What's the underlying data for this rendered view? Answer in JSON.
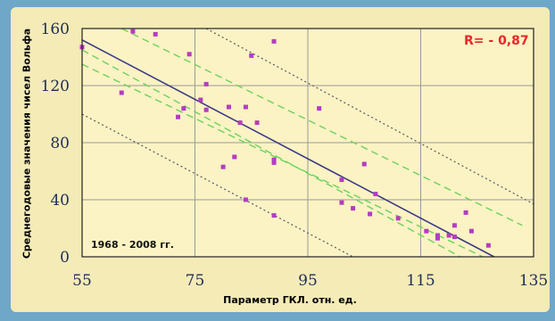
{
  "chart_data": {
    "type": "scatter",
    "ylabel": "Среднегодовые значения чисел Вольфа",
    "xlabel": "Параметр  ГКЛ.  отн. ед.",
    "annotation": "R= - 0,87",
    "period_label": "1968 - 2008  гг.",
    "xlim": [
      55,
      135
    ],
    "ylim": [
      0,
      160
    ],
    "x_ticks": [
      55,
      75,
      95,
      115,
      135
    ],
    "y_ticks": [
      0,
      40,
      80,
      120,
      160
    ],
    "grid": true,
    "series": [
      {
        "kind": "points",
        "color": "#b43cc2",
        "points": [
          [
            55,
            147
          ],
          [
            62,
            115
          ],
          [
            64,
            158
          ],
          [
            68,
            156
          ],
          [
            72,
            98
          ],
          [
            73,
            104
          ],
          [
            74,
            142
          ],
          [
            76,
            110
          ],
          [
            77,
            103
          ],
          [
            77,
            121
          ],
          [
            80,
            63
          ],
          [
            81,
            105
          ],
          [
            82,
            70
          ],
          [
            83,
            94
          ],
          [
            84,
            105
          ],
          [
            84,
            40
          ],
          [
            85,
            141
          ],
          [
            86,
            94
          ],
          [
            89,
            151
          ],
          [
            89,
            66
          ],
          [
            89,
            68
          ],
          [
            89,
            29
          ],
          [
            97,
            104
          ],
          [
            101,
            54
          ],
          [
            101,
            38
          ],
          [
            103,
            34
          ],
          [
            105,
            65
          ],
          [
            106,
            30
          ],
          [
            107,
            44
          ],
          [
            111,
            27
          ],
          [
            116,
            18
          ],
          [
            118,
            15
          ],
          [
            118,
            13
          ],
          [
            120,
            15
          ],
          [
            121,
            14
          ],
          [
            121,
            22
          ],
          [
            123,
            31
          ],
          [
            124,
            18
          ],
          [
            127,
            8
          ]
        ]
      },
      {
        "kind": "regression",
        "color": "#3d3b86",
        "points": [
          [
            55,
            152
          ],
          [
            128,
            0
          ]
        ]
      },
      {
        "kind": "confidence-band",
        "color": "#6fd060",
        "points": [
          [
            55,
            145
          ],
          [
            122,
            0
          ]
        ]
      },
      {
        "kind": "confidence-band",
        "color": "#6fd060",
        "points": [
          [
            55,
            135
          ],
          [
            126,
            0
          ]
        ]
      },
      {
        "kind": "confidence-band",
        "color": "#6fd060",
        "points": [
          [
            62,
            160
          ],
          [
            133,
            22
          ]
        ]
      },
      {
        "kind": "prediction-band",
        "color": "#555566",
        "points": [
          [
            55,
            100
          ],
          [
            103,
            0
          ]
        ]
      },
      {
        "kind": "prediction-band",
        "color": "#555566",
        "points": [
          [
            77,
            160
          ],
          [
            135,
            37
          ]
        ]
      }
    ]
  },
  "colors": {
    "plot_background": "#fbf3c3",
    "frame": "#f4ebb6",
    "page_background": "#6fa7c9"
  }
}
